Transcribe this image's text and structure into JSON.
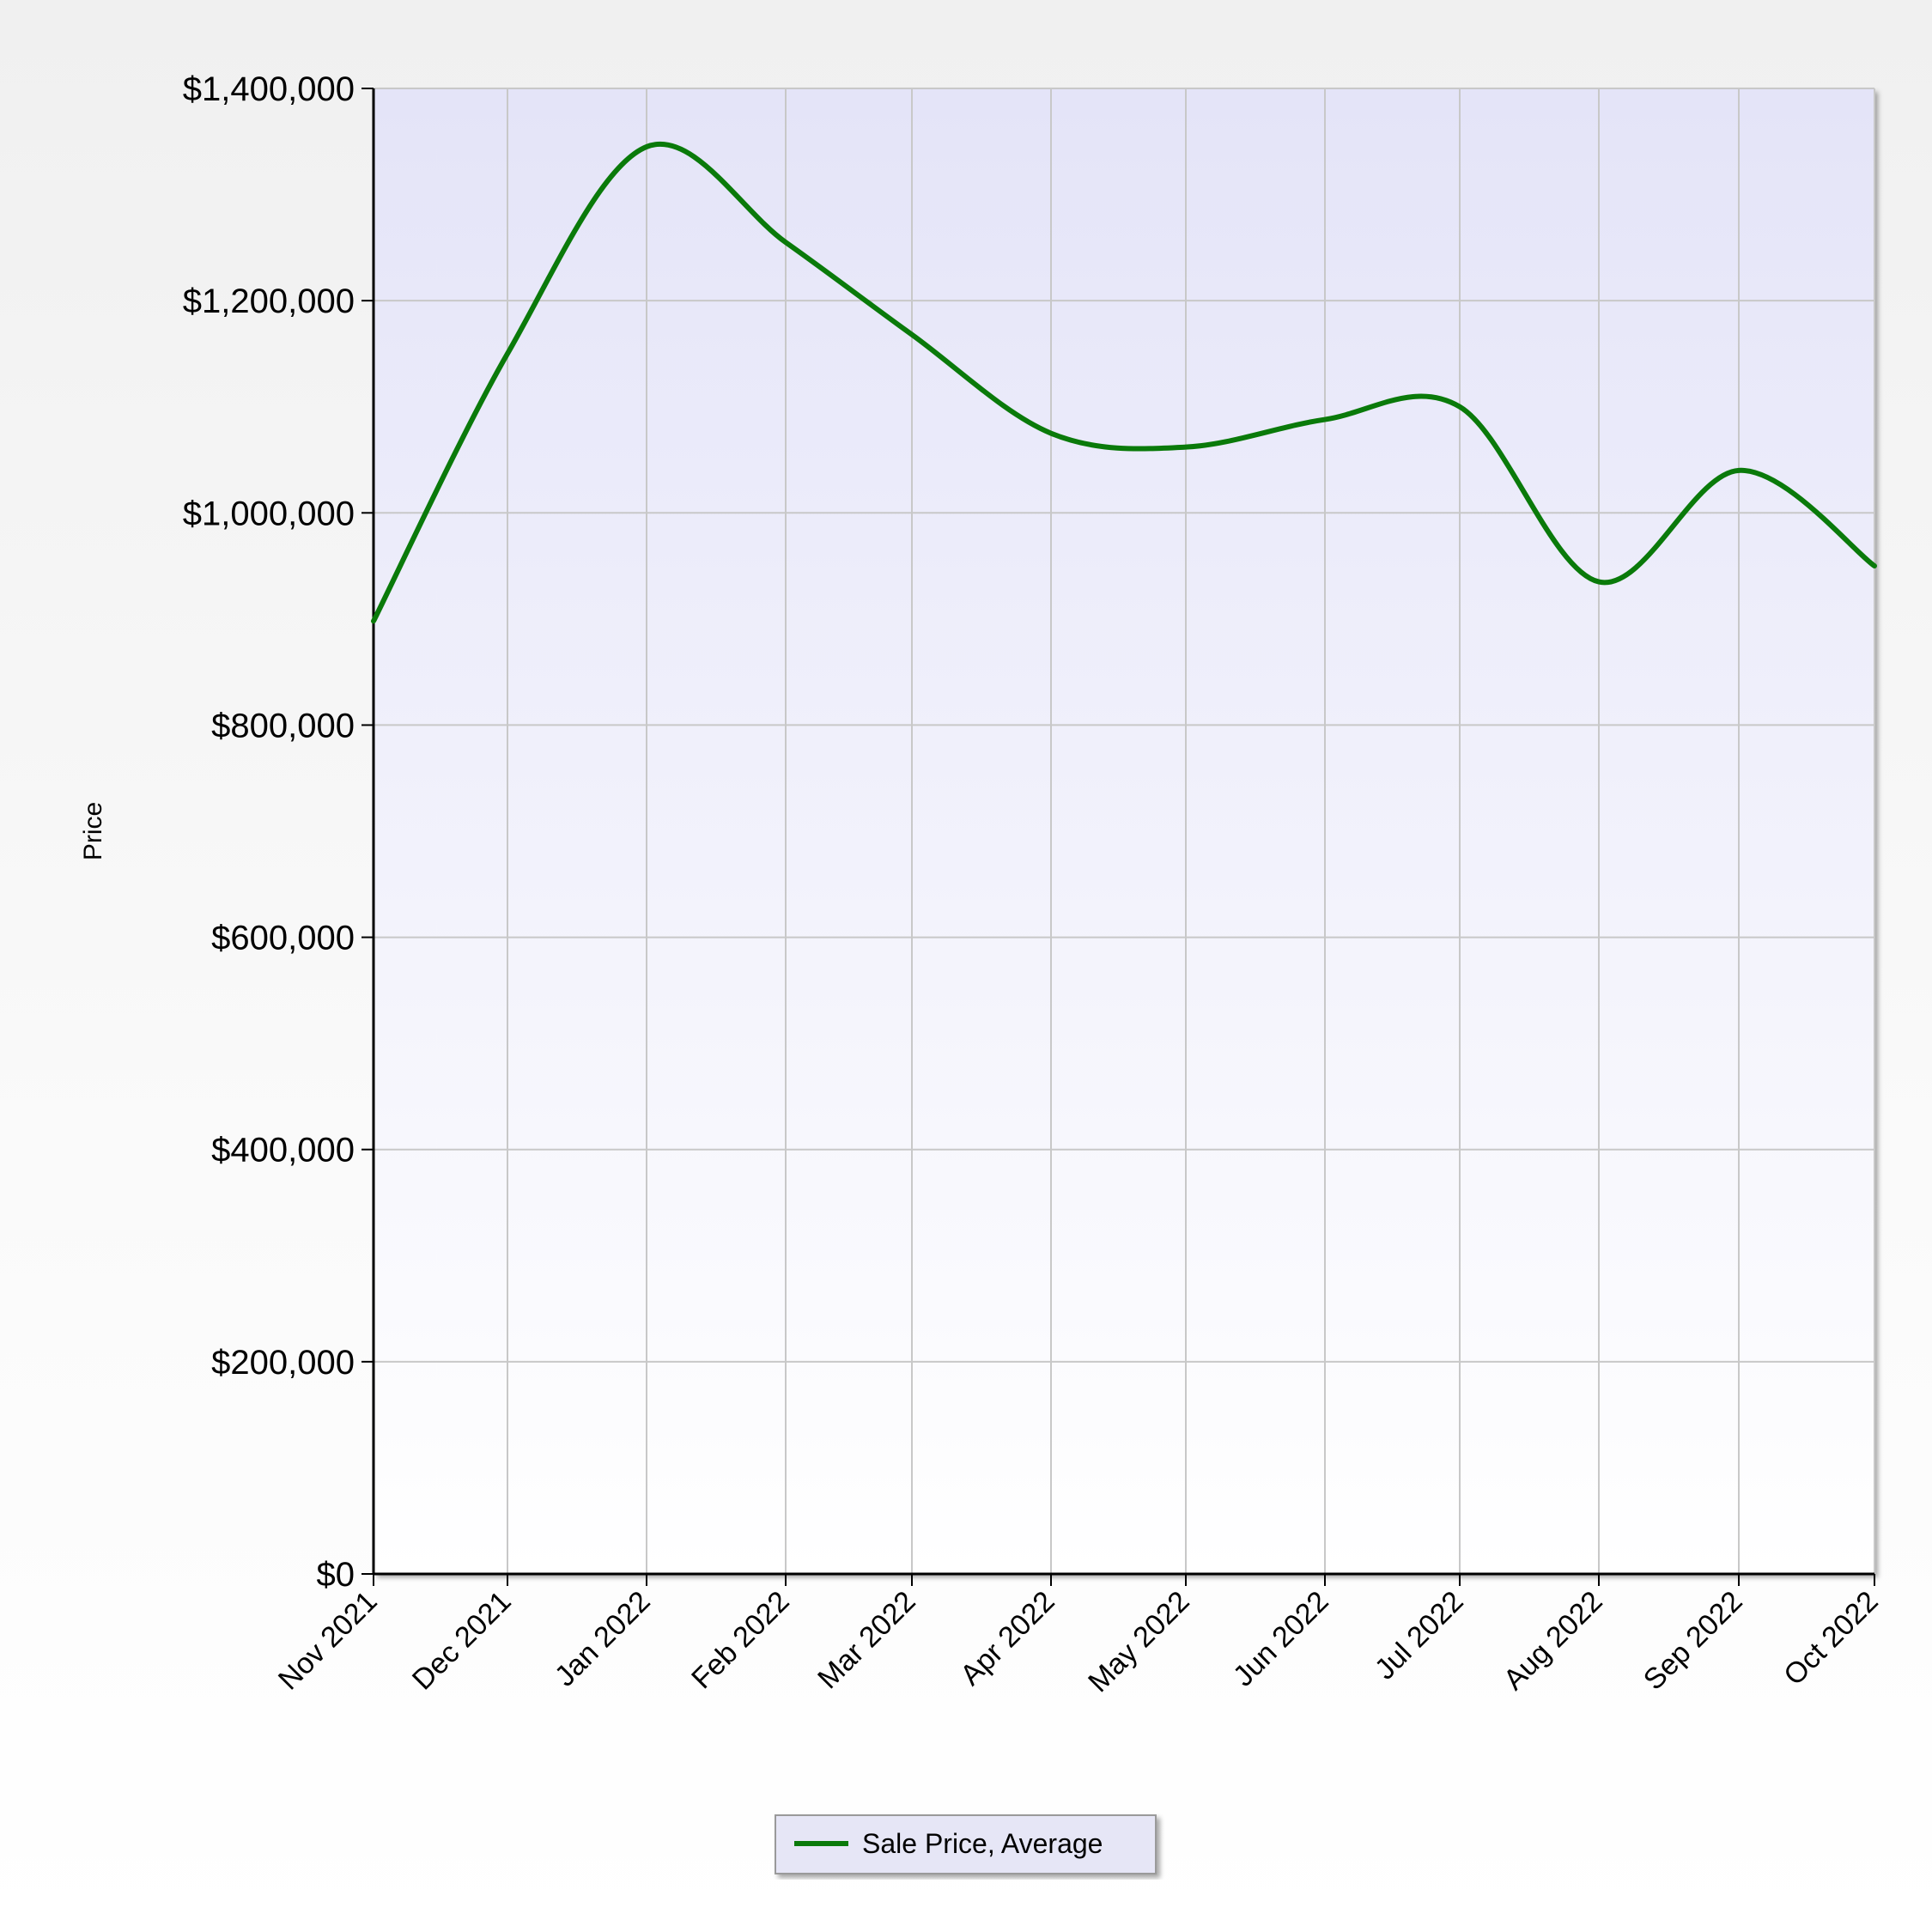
{
  "chart_data": {
    "type": "line",
    "title": "",
    "xlabel": "",
    "ylabel": "Price",
    "categories": [
      "Nov 2021",
      "Dec 2021",
      "Jan 2022",
      "Feb 2022",
      "Mar 2022",
      "Apr 2022",
      "May 2022",
      "Jun 2022",
      "Jul 2022",
      "Aug 2022",
      "Sep 2022",
      "Oct 2022"
    ],
    "ylim": [
      0,
      1400000
    ],
    "yticks": [
      0,
      200000,
      400000,
      600000,
      800000,
      1000000,
      1200000,
      1400000
    ],
    "ytick_labels": [
      "$0",
      "$200,000",
      "$400,000",
      "$600,000",
      "$800,000",
      "$1,000,000",
      "$1,200,000",
      "$1,400,000"
    ],
    "grid": true,
    "legend_position": "bottom-center",
    "series": [
      {
        "name": "Sale Price, Average",
        "color": "#0a7a0a",
        "values": [
          898000,
          1150000,
          1345000,
          1255000,
          1168000,
          1075000,
          1062000,
          1088000,
          1100000,
          935000,
          1040000,
          950000
        ]
      }
    ]
  },
  "colors": {
    "plot_top": "#e4e4f8",
    "plot_bottom": "#ffffff",
    "grid": "#c8c8c8",
    "axis": "#000000"
  }
}
